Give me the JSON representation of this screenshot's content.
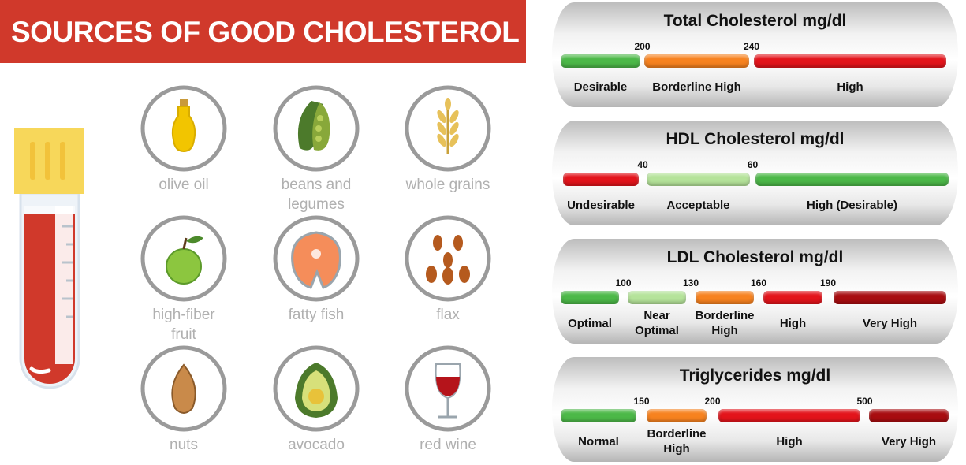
{
  "header": {
    "title": "SOURCES OF GOOD CHOLESTEROL"
  },
  "foods": [
    {
      "lines": [
        "olive oil"
      ]
    },
    {
      "lines": [
        "beans and",
        "legumes"
      ]
    },
    {
      "lines": [
        "whole grains"
      ]
    },
    {
      "lines": [
        "high-fiber",
        "fruit"
      ]
    },
    {
      "lines": [
        "fatty fish"
      ]
    },
    {
      "lines": [
        "flax"
      ]
    },
    {
      "lines": [
        "nuts"
      ]
    },
    {
      "lines": [
        "avocado"
      ]
    },
    {
      "lines": [
        "red wine"
      ]
    }
  ],
  "panels": [
    {
      "title": "Total Cholesterol mg/dl",
      "thresholds": [
        "200",
        "240"
      ],
      "ranges": [
        {
          "label": "Desirable",
          "color": "#4cb848"
        },
        {
          "label": "Borderline High",
          "color": "#f7821f"
        },
        {
          "label": "High",
          "color": "#e3141b"
        }
      ]
    },
    {
      "title": "HDL Cholesterol mg/dl",
      "thresholds": [
        "40",
        "60"
      ],
      "ranges": [
        {
          "label": "Undesirable",
          "color": "#e3141b"
        },
        {
          "label": "Acceptable",
          "color": "#b5e39a"
        },
        {
          "label": "High (Desirable)",
          "color": "#4cb848"
        }
      ]
    },
    {
      "title": "LDL Cholesterol mg/dl",
      "thresholds": [
        "100",
        "130",
        "160",
        "190"
      ],
      "ranges": [
        {
          "label": "Optimal",
          "color": "#4cb848"
        },
        {
          "label": "Near Optimal",
          "color": "#b5e39a"
        },
        {
          "label": "Borderline High",
          "color": "#f7821f"
        },
        {
          "label": "High",
          "color": "#e3141b"
        },
        {
          "label": "Very High",
          "color": "#a80d10"
        }
      ]
    },
    {
      "title": "Triglycerides mg/dl",
      "thresholds": [
        "150",
        "200",
        "500"
      ],
      "ranges": [
        {
          "label": "Normal",
          "color": "#4cb848"
        },
        {
          "label": "Borderline High",
          "color": "#f7821f"
        },
        {
          "label": "High",
          "color": "#e3141b"
        },
        {
          "label": "Very High",
          "color": "#a80d10"
        }
      ]
    }
  ]
}
